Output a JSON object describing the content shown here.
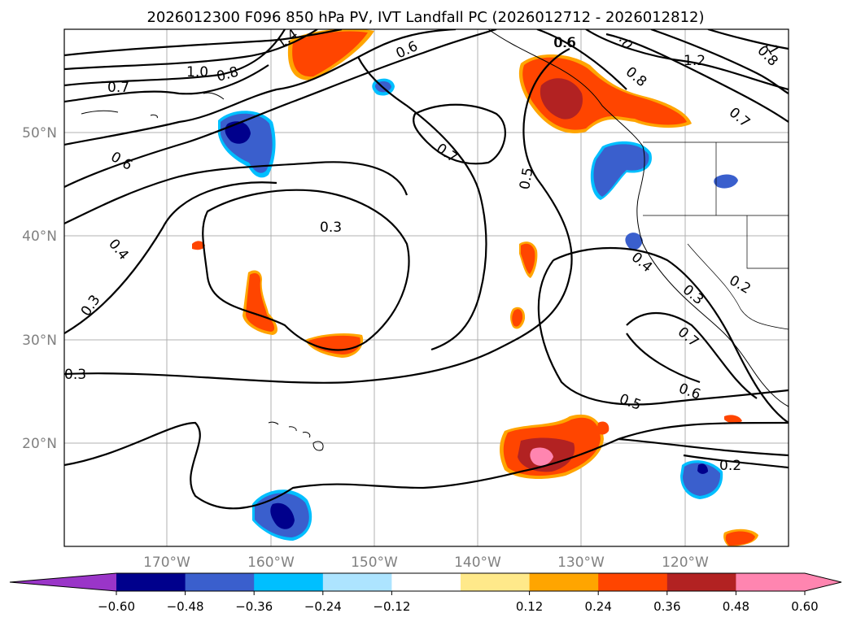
{
  "title": "2026012300 F096 850 hPa PV, IVT Landfall PC (2026012712 - 2026012812)",
  "lat_labels": [
    "50°N",
    "40°N",
    "30°N",
    "20°N"
  ],
  "lon_labels": [
    "170°W",
    "160°W",
    "150°W",
    "140°W",
    "130°W",
    "120°W"
  ],
  "contour_labels": [
    "1.4",
    "1.0",
    "0.8",
    "0.7",
    "0.6",
    "0.6",
    "0.4",
    "0.3",
    "0.3",
    "0.6",
    "0.7",
    "0.5",
    "0.6",
    "0.8",
    "0.7",
    "1.2",
    "0.8",
    "0.4",
    "0.3",
    "0.2",
    "0.7",
    "0.6",
    "0.5",
    "0.2",
    "0.3",
    ".1",
    ".0"
  ],
  "colorbar": {
    "ticks": [
      "−0.60",
      "−0.48",
      "−0.36",
      "−0.24",
      "−0.12",
      "0.12",
      "0.24",
      "0.36",
      "0.48",
      "0.60"
    ],
    "colors": [
      "#9a35c8",
      "#00008c",
      "#3a5fcd",
      "#00bfff",
      "#ade4ff",
      "#ffffff",
      "#ffe98a",
      "#ffa500",
      "#ff4500",
      "#b22222",
      "#ff85b0",
      "#ff85b0"
    ]
  }
}
